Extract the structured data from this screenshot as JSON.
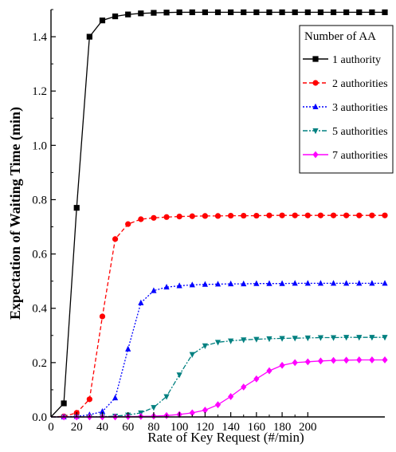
{
  "chart_data": {
    "type": "line",
    "xlabel": "Rate of Key Request (#/min)",
    "ylabel": "Expectation of Waiting Time (min)",
    "xlim": [
      0,
      260
    ],
    "ylim": [
      0,
      1.5
    ],
    "x_ticks": [
      0,
      20,
      40,
      60,
      80,
      100,
      120,
      140,
      160,
      180,
      200
    ],
    "y_ticks": [
      "0.0",
      "0.2",
      "0.4",
      "0.6",
      "0.8",
      "1.0",
      "1.2",
      "1.4"
    ],
    "y_tick_values": [
      0,
      0.2,
      0.4,
      0.6,
      0.8,
      1.0,
      1.2,
      1.4
    ],
    "legend_title": "Number of AA",
    "legend_position": "top-right",
    "grid": false,
    "series": [
      {
        "name": "1 authority",
        "color": "#000000",
        "marker": "square",
        "dash": "",
        "x": [
          0,
          10,
          20,
          30,
          40,
          50,
          60,
          70,
          80,
          90,
          100,
          110,
          120,
          130,
          140,
          150,
          160,
          170,
          180,
          190,
          200,
          210,
          220,
          230,
          240,
          250,
          260
        ],
        "y": [
          0.0,
          0.05,
          0.77,
          1.4,
          1.46,
          1.475,
          1.482,
          1.486,
          1.488,
          1.489,
          1.49,
          1.49,
          1.49,
          1.49,
          1.49,
          1.49,
          1.49,
          1.49,
          1.49,
          1.49,
          1.49,
          1.49,
          1.49,
          1.49,
          1.49,
          1.49,
          1.49
        ]
      },
      {
        "name": "2 authorities",
        "color": "#ff0000",
        "marker": "circle",
        "dash": "5,3",
        "x": [
          0,
          10,
          20,
          30,
          40,
          50,
          60,
          70,
          80,
          90,
          100,
          110,
          120,
          130,
          140,
          150,
          160,
          170,
          180,
          190,
          200,
          210,
          220,
          230,
          240,
          250,
          260
        ],
        "y": [
          0.0,
          0.002,
          0.015,
          0.065,
          0.37,
          0.655,
          0.71,
          0.728,
          0.733,
          0.736,
          0.738,
          0.739,
          0.74,
          0.74,
          0.741,
          0.741,
          0.741,
          0.742,
          0.742,
          0.742,
          0.742,
          0.742,
          0.742,
          0.742,
          0.742,
          0.742,
          0.742
        ]
      },
      {
        "name": "3 authorities",
        "color": "#0000ff",
        "marker": "triangle-up",
        "dash": "2,2",
        "x": [
          0,
          10,
          20,
          30,
          40,
          50,
          60,
          70,
          80,
          90,
          100,
          110,
          120,
          130,
          140,
          150,
          160,
          170,
          180,
          190,
          200,
          210,
          220,
          230,
          240,
          250,
          260
        ],
        "y": [
          0.0,
          0.0,
          0.002,
          0.008,
          0.02,
          0.07,
          0.25,
          0.42,
          0.465,
          0.478,
          0.483,
          0.486,
          0.488,
          0.489,
          0.49,
          0.49,
          0.491,
          0.491,
          0.491,
          0.492,
          0.492,
          0.492,
          0.492,
          0.492,
          0.492,
          0.492,
          0.492
        ]
      },
      {
        "name": "5 authorities",
        "color": "#008080",
        "marker": "triangle-down",
        "dash": "6,2,2,2",
        "x": [
          0,
          10,
          20,
          30,
          40,
          50,
          60,
          70,
          80,
          90,
          100,
          110,
          120,
          130,
          140,
          150,
          160,
          170,
          180,
          190,
          200,
          210,
          220,
          230,
          240,
          250,
          260
        ],
        "y": [
          0.0,
          0.0,
          0.0,
          0.0,
          0.001,
          0.003,
          0.007,
          0.015,
          0.035,
          0.075,
          0.155,
          0.23,
          0.262,
          0.275,
          0.28,
          0.284,
          0.286,
          0.288,
          0.289,
          0.29,
          0.291,
          0.292,
          0.292,
          0.293,
          0.293,
          0.293,
          0.293
        ]
      },
      {
        "name": "7 authorities",
        "color": "#ff00ff",
        "marker": "diamond",
        "dash": "",
        "x": [
          0,
          10,
          20,
          30,
          40,
          50,
          60,
          70,
          80,
          90,
          100,
          110,
          120,
          130,
          140,
          150,
          160,
          170,
          180,
          190,
          200,
          210,
          220,
          230,
          240,
          250,
          260
        ],
        "y": [
          0.0,
          0.0,
          0.0,
          0.0,
          0.0,
          0.0,
          0.001,
          0.002,
          0.003,
          0.005,
          0.009,
          0.015,
          0.025,
          0.045,
          0.075,
          0.11,
          0.14,
          0.17,
          0.19,
          0.2,
          0.203,
          0.206,
          0.208,
          0.209,
          0.21,
          0.21,
          0.21
        ]
      }
    ]
  }
}
